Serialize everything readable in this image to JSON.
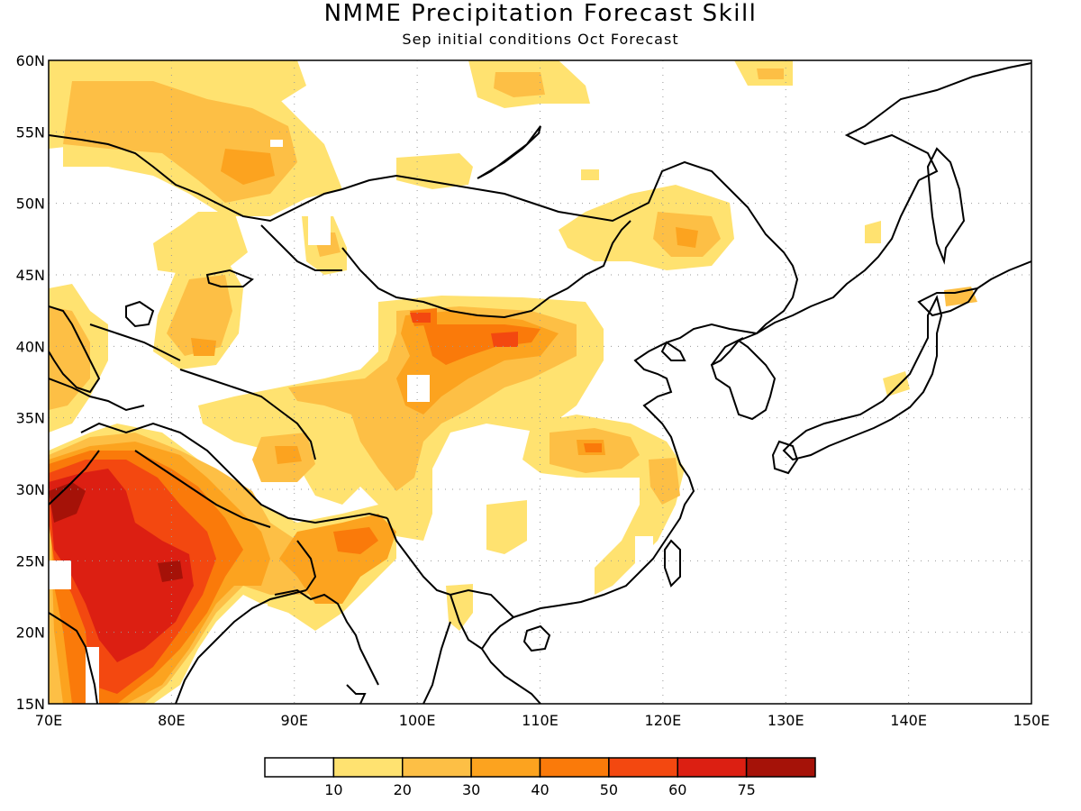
{
  "title": "NMME Precipitation Forecast Skill",
  "subtitle": "Sep initial conditions  Oct Forecast",
  "axes": {
    "lon_labels": [
      "70E",
      "80E",
      "90E",
      "100E",
      "110E",
      "120E",
      "130E",
      "140E",
      "150E"
    ],
    "lat_labels": [
      "15N",
      "20N",
      "25N",
      "30N",
      "35N",
      "40N",
      "45N",
      "50N",
      "55N",
      "60N"
    ],
    "lon_range": [
      70,
      150
    ],
    "lat_range": [
      15,
      60
    ],
    "grid": "dotted"
  },
  "colorbar": {
    "labels": [
      "10",
      "20",
      "30",
      "40",
      "50",
      "60",
      "75"
    ],
    "colors": [
      "#ffffff",
      "#ffe270",
      "#fdbf45",
      "#fca31f",
      "#fa7a0a",
      "#f34810",
      "#dc1f12",
      "#a51208"
    ]
  }
}
